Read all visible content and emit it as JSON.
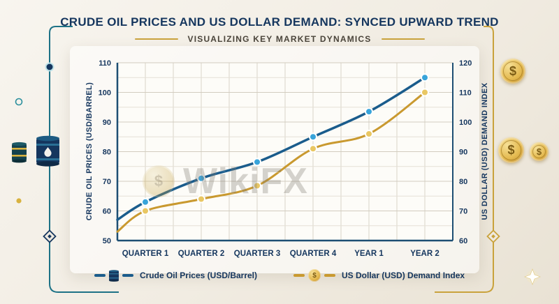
{
  "header": {
    "title": "CRUDE OIL PRICES AND US DOLLAR DEMAND: SYNCED UPWARD TREND",
    "subtitle": "VISUALIZING KEY MARKET DYNAMICS"
  },
  "watermark": {
    "text": "WikiFX"
  },
  "icons": {
    "dollar_sign": "$"
  },
  "colors": {
    "navy": "#15365e",
    "oil_line": "#1a5c8c",
    "oil_marker": "#38a4da",
    "usd_line": "#c9992f",
    "usd_marker": "#e9c763",
    "gold_accent": "#c9a23c",
    "teal_accent": "#1d7286"
  },
  "chart_data": {
    "type": "line",
    "title": "Crude Oil Prices and US Dollar Demand: Synced Upward Trend",
    "categories": [
      "QUARTER 1",
      "QUARTER 2",
      "QUARTER 3",
      "QUARTER 4",
      "YEAR 1",
      "YEAR 2"
    ],
    "left_axis": {
      "label": "CRUDE OIL PRICES (USD/BARREL)",
      "min": 50,
      "max": 110,
      "step": 10
    },
    "right_axis": {
      "label": "US DOLLAR (USD) DEMAND INDEX",
      "min": 60,
      "max": 120,
      "step": 10
    },
    "grid": true,
    "legend_position": "bottom",
    "series": [
      {
        "name": "Crude Oil Prices (USD/Barrel)",
        "axis": "left",
        "color": "#1a5c8c",
        "marker_color": "#38a4da",
        "edge_start": 57,
        "values": [
          63,
          71,
          76.5,
          85,
          93.5,
          105
        ]
      },
      {
        "name": "US Dollar (USD) Demand Index",
        "axis": "right",
        "color": "#c9992f",
        "marker_color": "#e9c763",
        "edge_start": 63,
        "values": [
          70,
          74,
          78.5,
          91,
          96,
          110
        ]
      }
    ]
  }
}
